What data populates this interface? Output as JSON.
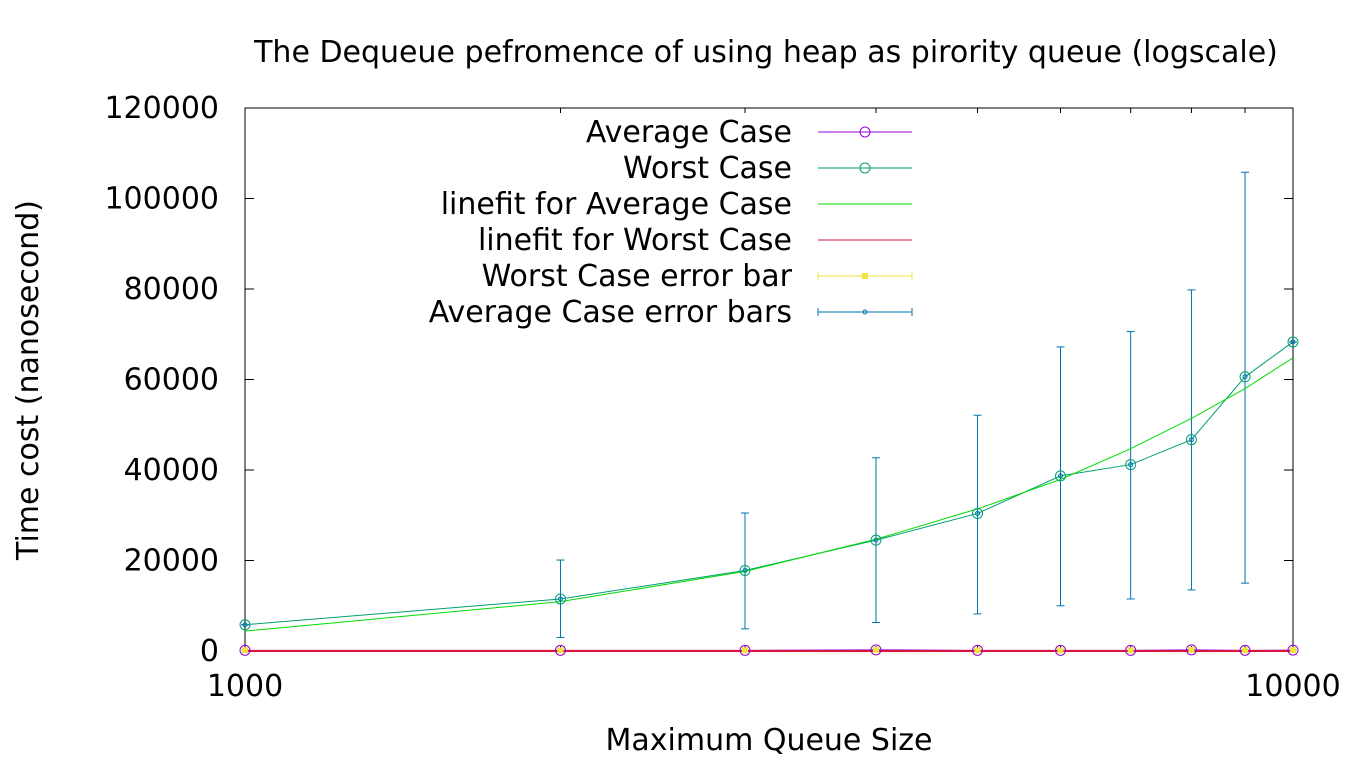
{
  "chart_data": {
    "type": "line",
    "title": "The Dequeue pefromence of using heap as pirority queue (logscale)",
    "xlabel": "Maximum Queue Size",
    "ylabel": "Time cost (nanosecond)",
    "xscale": "log",
    "xlim": [
      1000,
      10000
    ],
    "ylim": [
      0,
      120000
    ],
    "x_ticks": [
      {
        "value": 1000,
        "label": "1000"
      },
      {
        "value": 10000,
        "label": "10000"
      }
    ],
    "y_ticks": [
      {
        "value": 0,
        "label": "0"
      },
      {
        "value": 20000,
        "label": "20000"
      },
      {
        "value": 40000,
        "label": "40000"
      },
      {
        "value": 60000,
        "label": "60000"
      },
      {
        "value": 80000,
        "label": "80000"
      },
      {
        "value": 100000,
        "label": "100000"
      },
      {
        "value": 120000,
        "label": "120000"
      }
    ],
    "grid": false,
    "legend_position": "top-center",
    "x": [
      1000,
      2000,
      3000,
      4000,
      5000,
      6000,
      7000,
      8000,
      9000,
      10000
    ],
    "series": [
      {
        "name": "Average Case",
        "color": "#9400d3",
        "marker": "circle",
        "values": [
          150,
          150,
          150,
          250,
          150,
          150,
          150,
          250,
          150,
          200
        ]
      },
      {
        "name": "Worst Case",
        "color": "#009e73",
        "marker": "circle",
        "values": [
          5800,
          11500,
          17800,
          24500,
          30400,
          38700,
          41200,
          46700,
          60600,
          68300
        ]
      },
      {
        "name": "linefit for Average Case",
        "color": "#00dd00",
        "marker": "none",
        "values": [
          4400,
          10900,
          17600,
          24700,
          31400,
          37900,
          44700,
          51400,
          58000,
          64800
        ]
      },
      {
        "name": "linefit for Worst Case",
        "color": "#dc143c",
        "marker": "none",
        "values": [
          0,
          0,
          0,
          0,
          0,
          0,
          0,
          0,
          0,
          0
        ]
      },
      {
        "name": "Worst Case error bar",
        "color": "#f0e442",
        "marker": "square",
        "values": [
          150,
          150,
          150,
          250,
          150,
          150,
          150,
          250,
          150,
          200
        ],
        "err_low": [
          150,
          150,
          150,
          150,
          150,
          150,
          150,
          150,
          150,
          150
        ],
        "err_high": [
          150,
          150,
          150,
          350,
          150,
          150,
          150,
          350,
          150,
          250
        ]
      },
      {
        "name": "Average Case error bars",
        "color": "#0072b2",
        "marker": "dot",
        "values": [
          5800,
          11500,
          17800,
          24500,
          30400,
          38700,
          41200,
          46700,
          60600,
          68300
        ],
        "err_low": [
          5800,
          3000,
          4900,
          6300,
          8200,
          10000,
          11500,
          13500,
          15000,
          68300
        ],
        "err_high": [
          5800,
          20100,
          30500,
          42700,
          52100,
          67200,
          70600,
          79800,
          105800,
          68300
        ]
      }
    ]
  }
}
